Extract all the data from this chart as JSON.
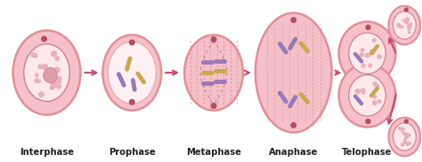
{
  "bg_color": "#ffffff",
  "cell_fill": "#f5c0c8",
  "cell_edge": "#e09098",
  "nucleus_fill": "#fde8ea",
  "nucleus_edge": "#d08090",
  "chromatin_fill": "#e8b0bc",
  "dot_color": "#b05060",
  "arrow_color": "#c05070",
  "chr_purple": "#9878b8",
  "chr_yellow": "#c8a850",
  "spindle_color": "#c06878",
  "labels": [
    "Interphase",
    "Prophase",
    "Metaphase",
    "Anaphase",
    "Telophase"
  ],
  "label_fontsize": 7.2,
  "label_color": "#222222"
}
